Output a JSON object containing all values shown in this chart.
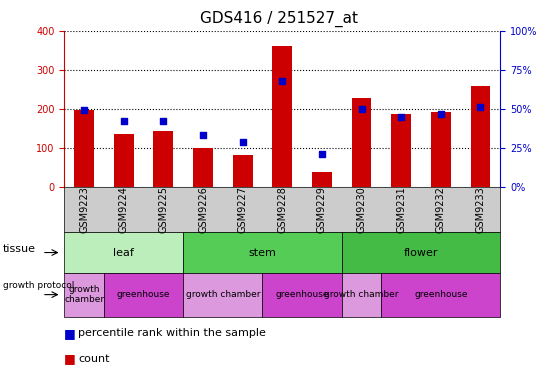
{
  "title": "GDS416 / 251527_at",
  "samples": [
    "GSM9223",
    "GSM9224",
    "GSM9225",
    "GSM9226",
    "GSM9227",
    "GSM9228",
    "GSM9229",
    "GSM9230",
    "GSM9231",
    "GSM9232",
    "GSM9233"
  ],
  "counts": [
    197,
    135,
    143,
    100,
    82,
    362,
    37,
    228,
    186,
    192,
    258
  ],
  "percentiles": [
    49,
    42,
    42,
    33,
    29,
    68,
    21,
    50,
    45,
    47,
    51
  ],
  "ylim_left": [
    0,
    400
  ],
  "ylim_right": [
    0,
    100
  ],
  "yticks_left": [
    0,
    100,
    200,
    300,
    400
  ],
  "yticks_right": [
    0,
    25,
    50,
    75,
    100
  ],
  "bar_color": "#cc0000",
  "dot_color": "#0000cc",
  "tissue_groups": [
    {
      "label": "leaf",
      "start": 0,
      "end": 3,
      "color": "#bbeebb"
    },
    {
      "label": "stem",
      "start": 3,
      "end": 7,
      "color": "#55cc55"
    },
    {
      "label": "flower",
      "start": 7,
      "end": 11,
      "color": "#44bb44"
    }
  ],
  "protocol_groups": [
    {
      "label": "growth\nchamber",
      "start": 0,
      "end": 1,
      "color": "#dd99dd"
    },
    {
      "label": "greenhouse",
      "start": 1,
      "end": 3,
      "color": "#cc44cc"
    },
    {
      "label": "growth chamber",
      "start": 3,
      "end": 5,
      "color": "#dd99dd"
    },
    {
      "label": "greenhouse",
      "start": 5,
      "end": 7,
      "color": "#cc44cc"
    },
    {
      "label": "growth chamber",
      "start": 7,
      "end": 8,
      "color": "#dd99dd"
    },
    {
      "label": "greenhouse",
      "start": 8,
      "end": 11,
      "color": "#cc44cc"
    }
  ],
  "tissue_label": "tissue",
  "protocol_label": "growth protocol",
  "legend_count_label": "count",
  "legend_percentile_label": "percentile rank within the sample",
  "background_color": "#ffffff",
  "axis_left_color": "#cc0000",
  "axis_right_color": "#0000cc",
  "gsm_bg_color": "#cccccc",
  "title_fontsize": 11,
  "tick_fontsize": 7,
  "label_fontsize": 8,
  "protocol_fontsize": 6.5
}
